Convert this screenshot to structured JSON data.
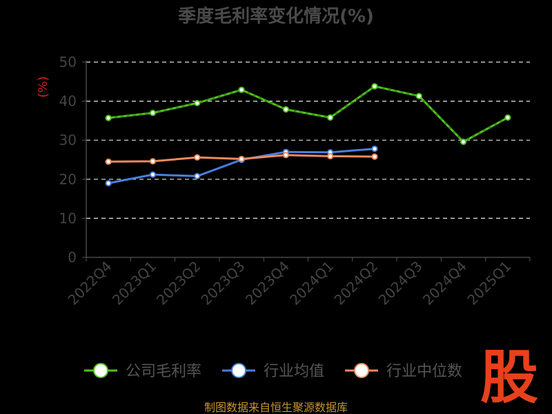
{
  "chart_data": {
    "type": "line",
    "title": "季度毛利率变化情况(%)",
    "ylabel": "(%)",
    "xlabel": "",
    "categories": [
      "2022Q4",
      "2023Q1",
      "2023Q2",
      "2023Q3",
      "2023Q4",
      "2024Q1",
      "2024Q2",
      "2024Q3",
      "2024Q4",
      "2025Q1"
    ],
    "ylim": [
      0,
      50
    ],
    "yticks": [
      0,
      10,
      20,
      30,
      40,
      50
    ],
    "grid": true,
    "legend_position": "bottom",
    "series": [
      {
        "name": "公司毛利率",
        "color": "#52c41a",
        "values": [
          35.7,
          37.0,
          39.5,
          42.9,
          37.9,
          35.8,
          43.8,
          41.3,
          29.6,
          35.8
        ]
      },
      {
        "name": "行业均值",
        "color": "#4a7fe0",
        "values": [
          19.0,
          21.2,
          20.8,
          25.0,
          27.0,
          26.9,
          27.8,
          null,
          null,
          null
        ]
      },
      {
        "name": "行业中位数",
        "color": "#f08a5d",
        "values": [
          24.5,
          24.6,
          25.6,
          25.2,
          26.2,
          25.9,
          25.8,
          null,
          null,
          null
        ]
      }
    ]
  },
  "footer": {
    "source": "制图数据来自恒生聚源数据库"
  },
  "watermark": "股"
}
